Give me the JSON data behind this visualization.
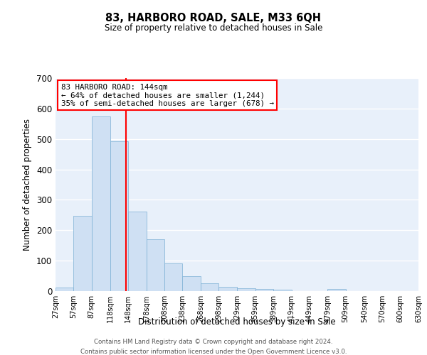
{
  "title": "83, HARBORO ROAD, SALE, M33 6QH",
  "subtitle": "Size of property relative to detached houses in Sale",
  "xlabel": "Distribution of detached houses by size in Sale",
  "ylabel": "Number of detached properties",
  "bar_color": "#cfe0f3",
  "bar_edge_color": "#7bafd4",
  "bg_color": "#e8f0fa",
  "grid_color": "#ffffff",
  "vline_x": 144,
  "vline_color": "red",
  "annotation_line1": "83 HARBORO ROAD: 144sqm",
  "annotation_line2": "← 64% of detached houses are smaller (1,244)",
  "annotation_line3": "35% of semi-detached houses are larger (678) →",
  "annotation_box_color": "white",
  "annotation_box_edgecolor": "red",
  "bin_edges": [
    27,
    57,
    87,
    118,
    148,
    178,
    208,
    238,
    268,
    298,
    329,
    359,
    389,
    419,
    449,
    479,
    509,
    540,
    570,
    600,
    630
  ],
  "bin_heights": [
    12,
    248,
    573,
    493,
    261,
    170,
    90,
    50,
    25,
    14,
    10,
    6,
    5,
    0,
    0,
    7,
    0,
    0,
    0,
    0
  ],
  "ylim": [
    0,
    700
  ],
  "yticks": [
    0,
    100,
    200,
    300,
    400,
    500,
    600,
    700
  ],
  "footer_line1": "Contains HM Land Registry data © Crown copyright and database right 2024.",
  "footer_line2": "Contains public sector information licensed under the Open Government Licence v3.0."
}
